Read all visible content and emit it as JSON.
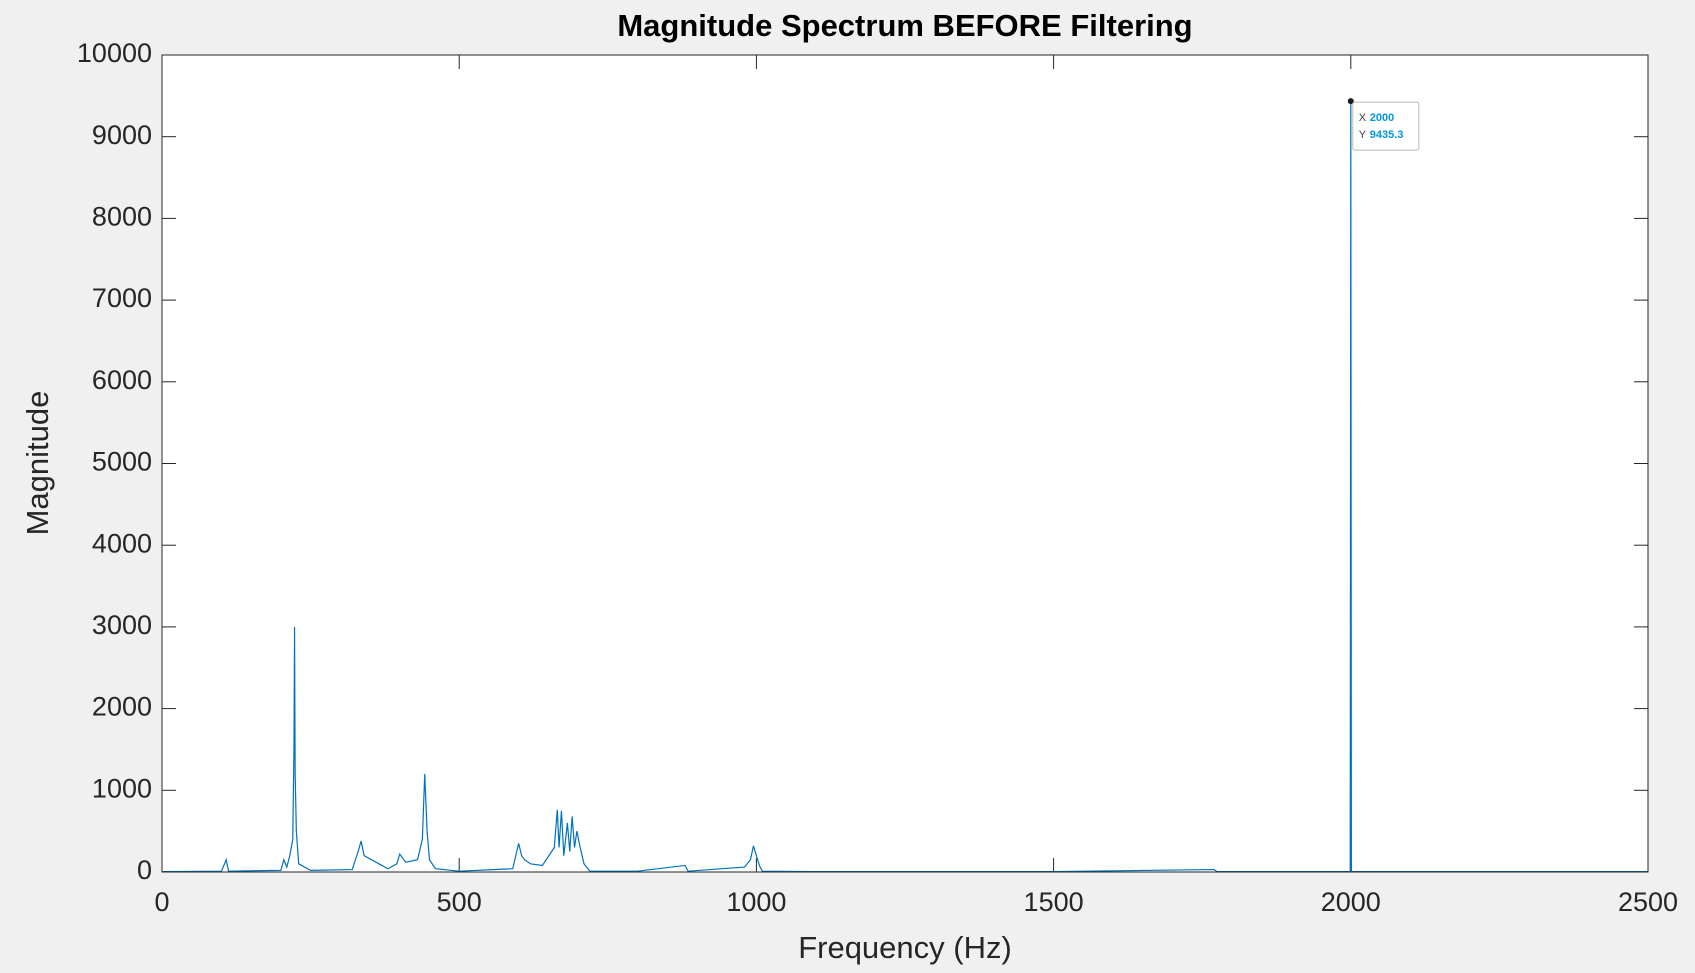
{
  "chart_data": {
    "type": "line",
    "title": "Magnitude Spectrum BEFORE Filtering",
    "x_label": "Frequency (Hz)",
    "y_label": "Magnitude",
    "xlim": [
      0,
      2500
    ],
    "ylim": [
      0,
      10000
    ],
    "xticks": [
      0,
      500,
      1000,
      1500,
      2000,
      2500
    ],
    "yticks": [
      0,
      1000,
      2000,
      3000,
      4000,
      5000,
      6000,
      7000,
      8000,
      9000,
      10000
    ],
    "grid": false,
    "series": [
      {
        "name": "Magnitude",
        "color": "#0072bd",
        "x": [
          0,
          100,
          108,
          112,
          200,
          205,
          210,
          215,
          220,
          222,
          223,
          224,
          226,
          230,
          250,
          320,
          330,
          335,
          340,
          360,
          380,
          395,
          400,
          410,
          430,
          438,
          442,
          446,
          450,
          460,
          500,
          590,
          600,
          605,
          610,
          620,
          640,
          660,
          665,
          668,
          672,
          676,
          682,
          686,
          690,
          694,
          698,
          702,
          710,
          720,
          800,
          880,
          885,
          980,
          990,
          995,
          1000,
          1005,
          1010,
          1100,
          1500,
          1770,
          1775,
          1999,
          2000,
          2001,
          2500
        ],
        "values": [
          5,
          10,
          150,
          10,
          20,
          150,
          60,
          200,
          400,
          1500,
          3000,
          1200,
          500,
          100,
          20,
          30,
          250,
          380,
          200,
          120,
          40,
          100,
          220,
          120,
          150,
          400,
          1200,
          500,
          150,
          40,
          10,
          40,
          350,
          200,
          150,
          100,
          80,
          300,
          760,
          300,
          750,
          200,
          600,
          250,
          680,
          300,
          500,
          350,
          100,
          10,
          10,
          80,
          10,
          60,
          150,
          320,
          200,
          80,
          10,
          5,
          5,
          30,
          5,
          5,
          9435.3,
          5,
          5
        ]
      }
    ],
    "datatip": {
      "x_name": "X",
      "y_name": "Y",
      "x": 2000,
      "y": 9435.3
    }
  }
}
